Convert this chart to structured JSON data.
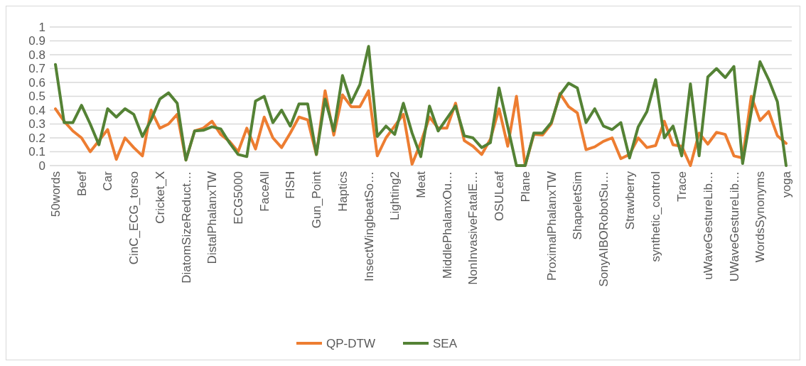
{
  "chart_data": {
    "type": "line",
    "categories": [
      "50words",
      null,
      null,
      "Beef",
      null,
      null,
      "Car",
      null,
      null,
      "CinC_ECG_torso",
      null,
      null,
      "Cricket_X",
      null,
      null,
      "DiatomSizeReduct…",
      null,
      null,
      "DistalPhalanxTW",
      null,
      null,
      "ECG5000",
      null,
      null,
      "FaceAll",
      null,
      null,
      "FISH",
      null,
      null,
      "Gun_Point",
      null,
      null,
      "Haptics",
      null,
      null,
      "InsectWingbeatSo…",
      null,
      null,
      "Lighting2",
      null,
      null,
      "Meat",
      null,
      null,
      "MiddlePhalanxOu…",
      null,
      null,
      "NonInvasiveFatalE…",
      null,
      null,
      "OSULeaf",
      null,
      null,
      "Plane",
      null,
      null,
      "ProximalPhalanxTW",
      null,
      null,
      "ShapeletSim",
      null,
      null,
      "SonyAIBORobotSu…",
      null,
      null,
      "Strawberry",
      null,
      null,
      "synthetic_control",
      null,
      null,
      "Trace",
      null,
      null,
      "uWaveGestureLib…",
      null,
      null,
      "UWaveGestureLib…",
      null,
      null,
      "WordsSynonyms",
      null,
      null,
      "yoga"
    ],
    "series": [
      {
        "name": "QP-DTW",
        "color": "#ed7d31",
        "values": [
          0.41,
          0.32,
          0.25,
          0.2,
          0.1,
          0.18,
          0.26,
          0.045,
          0.2,
          0.13,
          0.07,
          0.4,
          0.27,
          0.3,
          0.37,
          0.04,
          0.25,
          0.27,
          0.32,
          0.225,
          0.175,
          0.1,
          0.27,
          0.12,
          0.35,
          0.2,
          0.13,
          0.235,
          0.35,
          0.33,
          0.08,
          0.54,
          0.22,
          0.51,
          0.425,
          0.425,
          0.54,
          0.07,
          0.2,
          0.285,
          0.37,
          0.01,
          0.165,
          0.35,
          0.27,
          0.27,
          0.45,
          0.18,
          0.14,
          0.08,
          0.19,
          0.41,
          0.14,
          0.5,
          0,
          0.225,
          0.22,
          0.3,
          0.52,
          0.425,
          0.38,
          0.115,
          0.135,
          0.175,
          0.2,
          0.05,
          0.08,
          0.2,
          0.13,
          0.145,
          0.32,
          0.15,
          0.14,
          0,
          0.235,
          0.155,
          0.24,
          0.225,
          0.07,
          0.055,
          0.5,
          0.325,
          0.39,
          0.215,
          0.16
        ]
      },
      {
        "name": "SEA",
        "color": "#548235",
        "values": [
          0.73,
          0.31,
          0.31,
          0.435,
          0.3,
          0.15,
          0.41,
          0.35,
          0.41,
          0.37,
          0.21,
          0.33,
          0.48,
          0.525,
          0.45,
          0.04,
          0.25,
          0.255,
          0.28,
          0.265,
          0.165,
          0.08,
          0.065,
          0.465,
          0.5,
          0.31,
          0.4,
          0.285,
          0.445,
          0.445,
          0.08,
          0.48,
          0.25,
          0.65,
          0.455,
          0.585,
          0.86,
          0.21,
          0.285,
          0.225,
          0.45,
          0.235,
          0.065,
          0.43,
          0.25,
          0.34,
          0.43,
          0.215,
          0.2,
          0.13,
          0.165,
          0.56,
          0.28,
          0,
          0,
          0.235,
          0.235,
          0.31,
          0.51,
          0.595,
          0.56,
          0.31,
          0.41,
          0.285,
          0.26,
          0.31,
          0.055,
          0.28,
          0.39,
          0.62,
          0.2,
          0.285,
          0.07,
          0.59,
          0.07,
          0.64,
          0.7,
          0.635,
          0.715,
          0.015,
          0.39,
          0.75,
          0.62,
          0.46,
          0
        ]
      }
    ],
    "ylim": [
      0,
      1
    ],
    "yticks": [
      0,
      0.1,
      0.2,
      0.3,
      0.4,
      0.5,
      0.6,
      0.7,
      0.8,
      0.9,
      1
    ],
    "grid": "y",
    "legend": "bottom",
    "marker": "none",
    "line_style": "solid"
  }
}
